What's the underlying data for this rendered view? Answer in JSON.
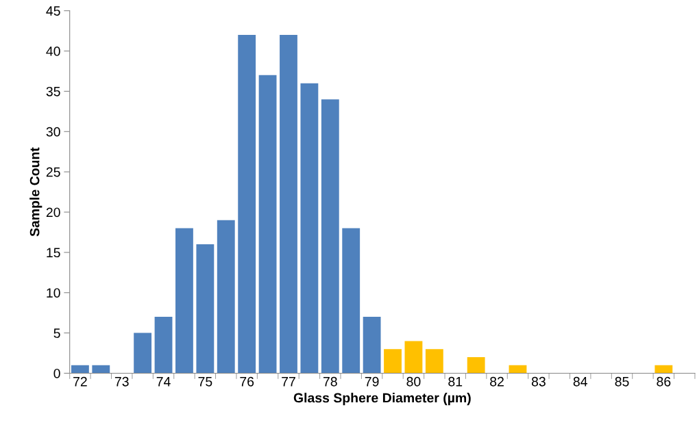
{
  "chart_data": {
    "type": "bar",
    "xlabel": "Glass Sphere Diameter (µm)",
    "ylabel": "Sample Count",
    "categories": [
      "72",
      null,
      "73",
      null,
      "74",
      null,
      "75",
      null,
      "76",
      null,
      "77",
      null,
      "78",
      null,
      "79",
      null,
      "80",
      null,
      "81",
      null,
      "82",
      null,
      "83",
      null,
      "84",
      null,
      "85",
      null,
      "86",
      null
    ],
    "values": [
      1,
      1,
      0,
      5,
      7,
      18,
      16,
      19,
      42,
      37,
      42,
      36,
      34,
      18,
      7,
      3,
      4,
      3,
      0,
      2,
      0,
      1,
      0,
      0,
      0,
      0,
      0,
      0,
      1,
      0
    ],
    "colors": [
      "#4f81bd",
      "#4f81bd",
      "#4f81bd",
      "#4f81bd",
      "#4f81bd",
      "#4f81bd",
      "#4f81bd",
      "#4f81bd",
      "#4f81bd",
      "#4f81bd",
      "#4f81bd",
      "#4f81bd",
      "#4f81bd",
      "#4f81bd",
      "#4f81bd",
      "#ffc000",
      "#ffc000",
      "#ffc000",
      "#ffc000",
      "#ffc000",
      "#ffc000",
      "#ffc000",
      "#ffc000",
      "#ffc000",
      "#ffc000",
      "#ffc000",
      "#ffc000",
      "#ffc000",
      "#ffc000",
      "#ffc000"
    ],
    "ylim": [
      0,
      45
    ],
    "yticks": [
      0,
      5,
      10,
      15,
      20,
      25,
      30,
      35,
      40,
      45
    ],
    "grid": false
  }
}
